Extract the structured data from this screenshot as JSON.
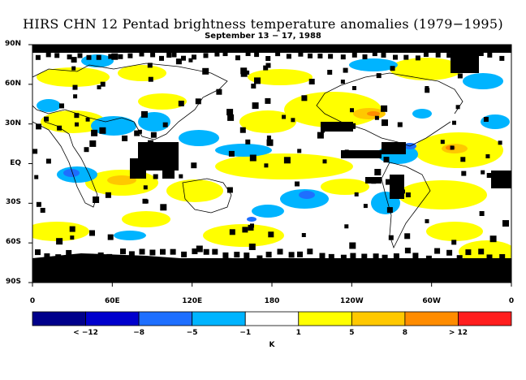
{
  "title": "HIRS CHN 12 Pentad brightness temperature anomalies (1979−1995)",
  "subtitle": "September 13 − 17, 1988",
  "lat_labels": [
    "90N",
    "60N",
    "30N",
    "EQ",
    "30S",
    "60S",
    "90S"
  ],
  "lon_labels": [
    "0",
    "60E",
    "120E",
    "180",
    "120W",
    "60W",
    "0"
  ],
  "colorbar": {
    "colors": [
      "#00008b",
      "#0000cd",
      "#1e6fff",
      "#00b4ff",
      "#ffffff",
      "#ffff00",
      "#ffc800",
      "#ff8c00",
      "#ff1e1e"
    ],
    "labels": [
      "< −12",
      "−8",
      "−5",
      "−1",
      "1",
      "5",
      "8",
      "> 12"
    ],
    "unit": "K"
  }
}
